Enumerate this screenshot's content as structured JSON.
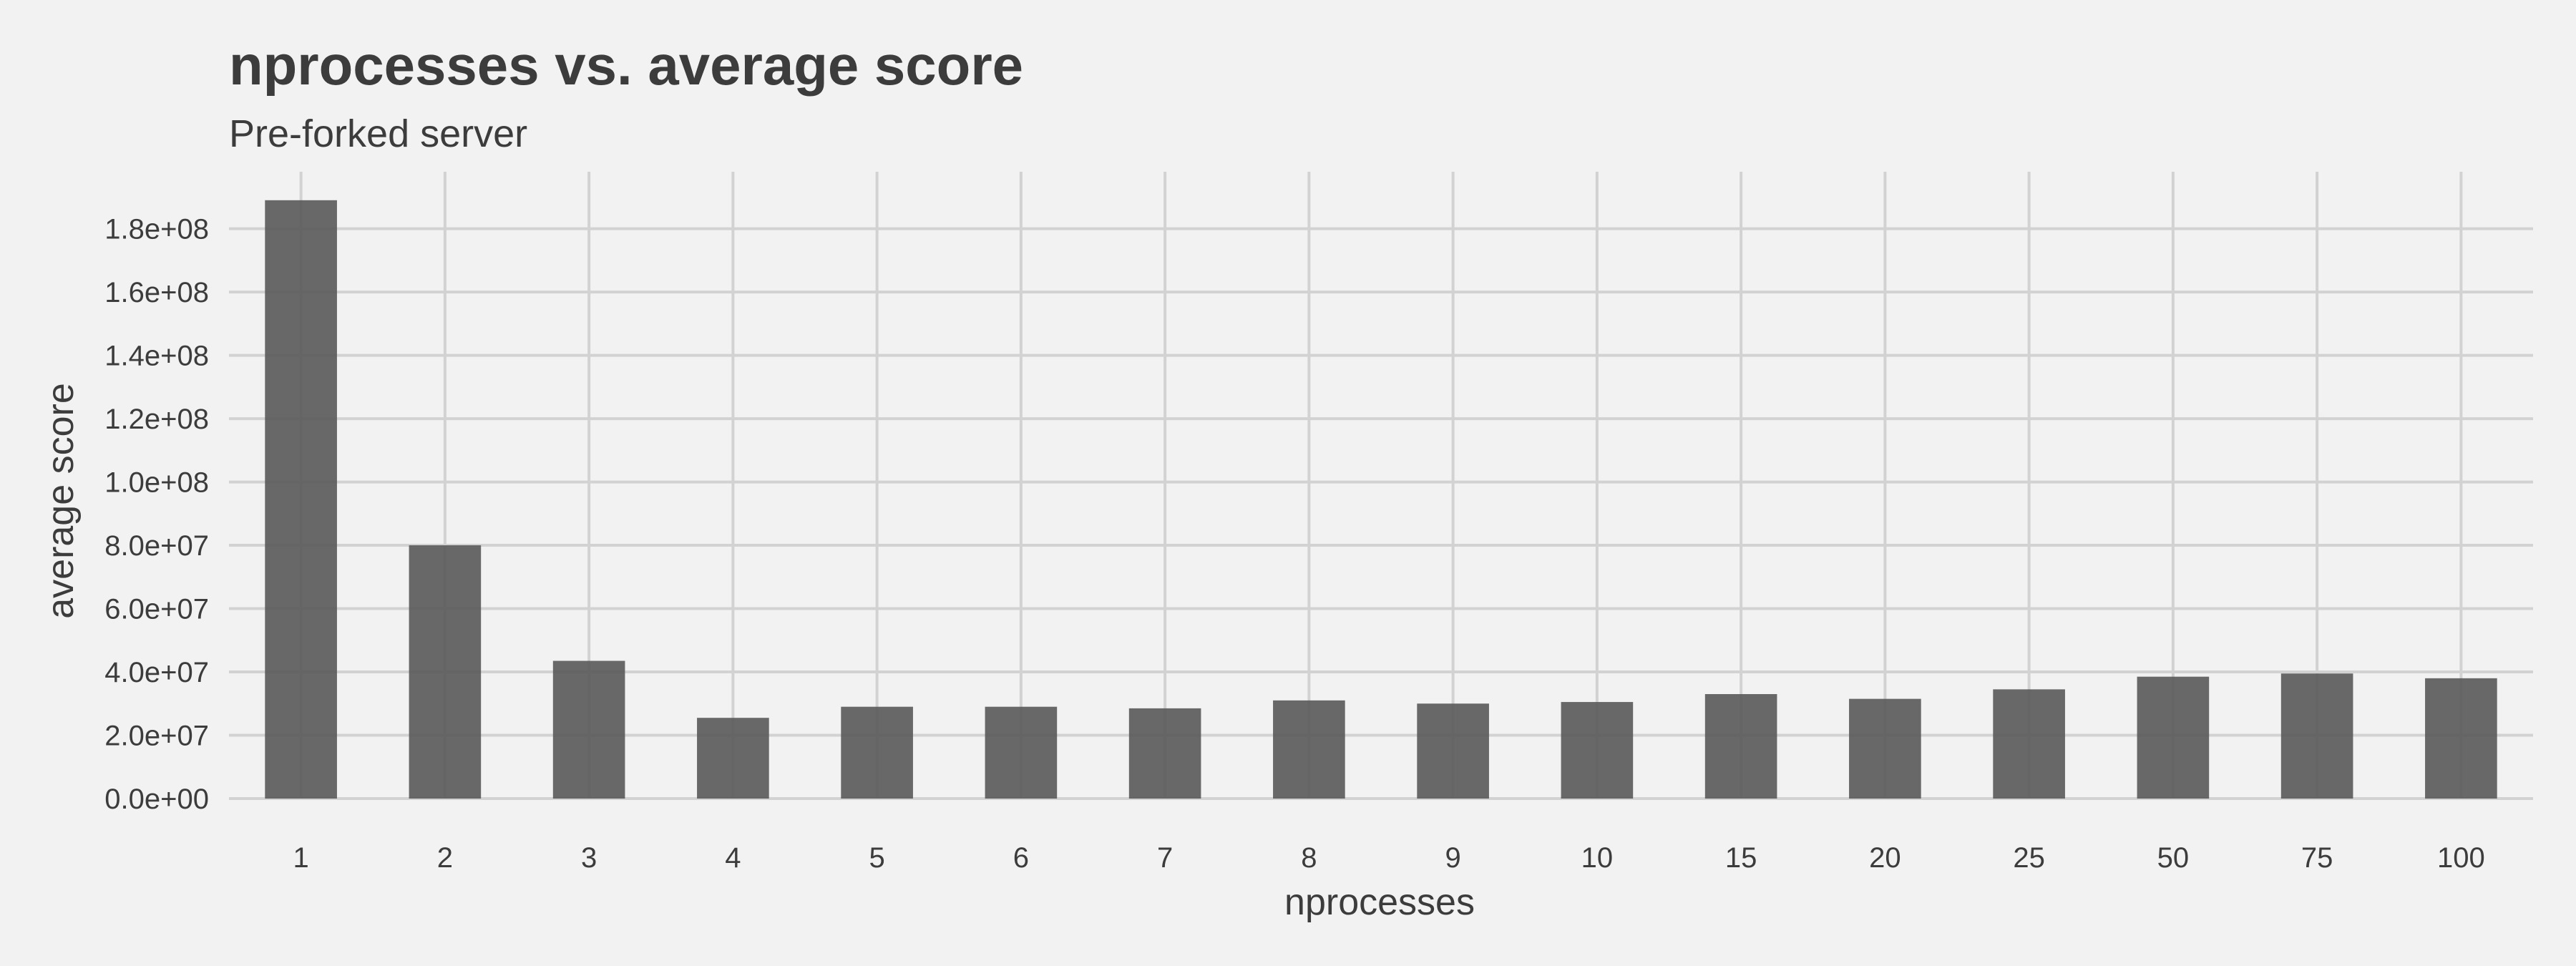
{
  "chart_data": {
    "type": "bar",
    "title": "nprocesses vs. average score",
    "subtitle": "Pre-forked server",
    "xlabel": "nprocesses",
    "ylabel": "average score",
    "categories": [
      "1",
      "2",
      "3",
      "4",
      "5",
      "6",
      "7",
      "8",
      "9",
      "10",
      "15",
      "20",
      "25",
      "50",
      "75",
      "100"
    ],
    "values": [
      189000000,
      80000000,
      43500000,
      25500000,
      29000000,
      29000000,
      28500000,
      31000000,
      30000000,
      30500000,
      33000000,
      31500000,
      34500000,
      38500000,
      39500000,
      38000000
    ],
    "yticks": [
      0,
      20000000,
      40000000,
      60000000,
      80000000,
      100000000,
      120000000,
      140000000,
      160000000,
      180000000
    ],
    "ytick_labels": [
      "0.0e+00",
      "2.0e+07",
      "4.0e+07",
      "6.0e+07",
      "8.0e+07",
      "1.0e+08",
      "1.2e+08",
      "1.4e+08",
      "1.6e+08",
      "1.8e+08"
    ],
    "ylim": [
      0,
      198000000
    ],
    "grid": true,
    "bar_color": "#595959"
  }
}
